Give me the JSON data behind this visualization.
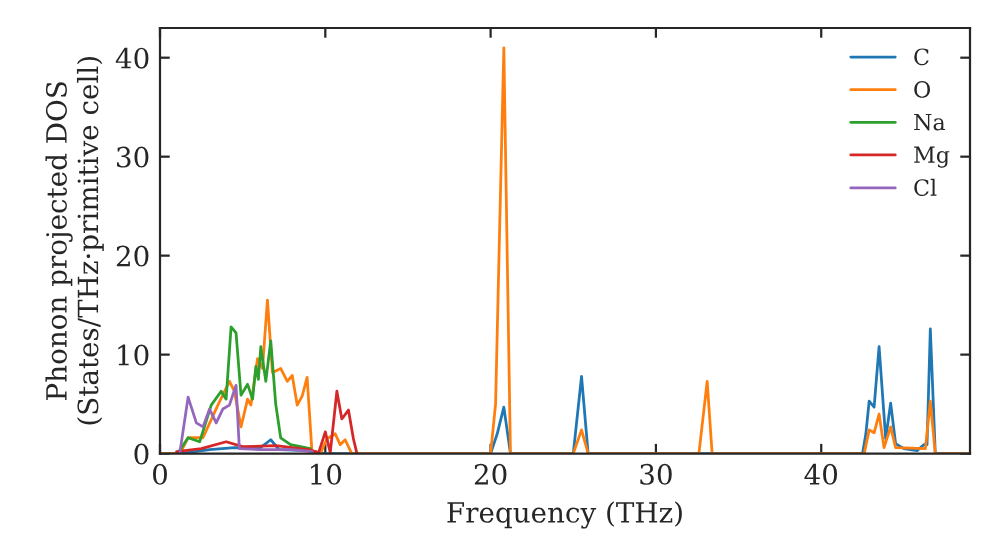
{
  "chart_data": {
    "type": "line",
    "xlabel": "Frequency (THz)",
    "ylabel": "Phonon projected DOS\n(States/THz·primitive cell)",
    "xlim": [
      0,
      49
    ],
    "ylim": [
      0,
      43
    ],
    "xticks": [
      0,
      10,
      20,
      30,
      40
    ],
    "yticks": [
      0,
      10,
      20,
      30,
      40
    ],
    "grid": false,
    "legend": "top right",
    "line_style": "solid",
    "marker": "none",
    "series": [
      {
        "name": "C",
        "color": "#1f77b4",
        "x": [
          0,
          1.2,
          3,
          4.5,
          6,
          6.7,
          7.2,
          9,
          10,
          20,
          20.4,
          20.8,
          21.2,
          25,
          25.5,
          25.9,
          42.5,
          42.7,
          42.9,
          43.2,
          43.5,
          43.9,
          44.2,
          44.5,
          45,
          45.8,
          46.2,
          46.4,
          46.6,
          46.9,
          49
        ],
        "values": [
          0,
          0,
          0.4,
          0.6,
          0.5,
          1.4,
          0.4,
          0.3,
          0,
          0,
          2,
          4.7,
          0,
          0,
          7.8,
          0,
          0,
          2,
          5.3,
          4.7,
          10.8,
          1.5,
          5.1,
          1,
          0.5,
          0.3,
          0.9,
          0.9,
          12.6,
          0,
          0
        ]
      },
      {
        "name": "O",
        "color": "#ff7f0e",
        "x": [
          0,
          1.2,
          1.7,
          2.6,
          3.5,
          4.2,
          4.5,
          4.9,
          5.3,
          5.5,
          5.9,
          6.2,
          6.5,
          6.8,
          7.3,
          7.7,
          8,
          8.3,
          8.6,
          8.9,
          9.2,
          9.7,
          10.1,
          10.6,
          10.9,
          11.2,
          11.6,
          20,
          20.3,
          20.8,
          21.2,
          25,
          25.5,
          25.9,
          32.6,
          33.1,
          33.4,
          42.6,
          42.9,
          43.2,
          43.5,
          43.8,
          44.2,
          44.5,
          46.3,
          46.6,
          46.9,
          49
        ],
        "values": [
          0,
          0,
          1.6,
          1.6,
          4.9,
          7.3,
          6.3,
          2.7,
          5.5,
          4.9,
          9.6,
          8.6,
          15.5,
          8.2,
          8.6,
          7.3,
          7.9,
          4.9,
          5.8,
          7.7,
          0,
          0,
          1.5,
          2,
          0.9,
          1.4,
          0,
          0,
          5,
          41,
          0,
          0,
          2.4,
          0,
          0,
          7.3,
          0,
          0,
          2.4,
          2.1,
          4,
          0.6,
          2.7,
          0.6,
          0.5,
          5.3,
          0,
          0
        ]
      },
      {
        "name": "Na",
        "color": "#2ca02c",
        "x": [
          1.1,
          1.7,
          2.4,
          3.1,
          3.7,
          4.0,
          4.3,
          4.6,
          4.9,
          5.3,
          5.6,
          5.8,
          5.95,
          6.1,
          6.4,
          6.7,
          7.0,
          7.3,
          7.9,
          9.1
        ],
        "values": [
          0.1,
          1.6,
          1.2,
          4.9,
          6.3,
          5.5,
          12.8,
          12.2,
          5.9,
          7,
          5.5,
          8.8,
          7.5,
          10.8,
          7.3,
          11.4,
          5,
          1.6,
          0.9,
          0.5
        ]
      },
      {
        "name": "Mg",
        "color": "#d62728",
        "x": [
          1,
          2.5,
          4,
          5,
          7,
          9,
          9.6,
          10.0,
          10.3,
          10.7,
          11.0,
          11.4,
          11.7,
          11.9
        ],
        "values": [
          0.2,
          0.5,
          1.2,
          0.7,
          0.8,
          0.4,
          0.1,
          2.2,
          0.1,
          6.3,
          3.5,
          4.4,
          1.5,
          0.1
        ]
      },
      {
        "name": "Cl",
        "color": "#9467bd",
        "x": [
          1.2,
          1.7,
          2.2,
          2.6,
          3.0,
          3.4,
          3.8,
          4.2,
          4.6,
          4.8,
          6,
          8,
          9.2
        ],
        "values": [
          0.1,
          5.7,
          3.1,
          2.7,
          4.5,
          3.1,
          4.5,
          4.9,
          6.9,
          0.5,
          0.4,
          0.4,
          0.2
        ]
      }
    ]
  }
}
